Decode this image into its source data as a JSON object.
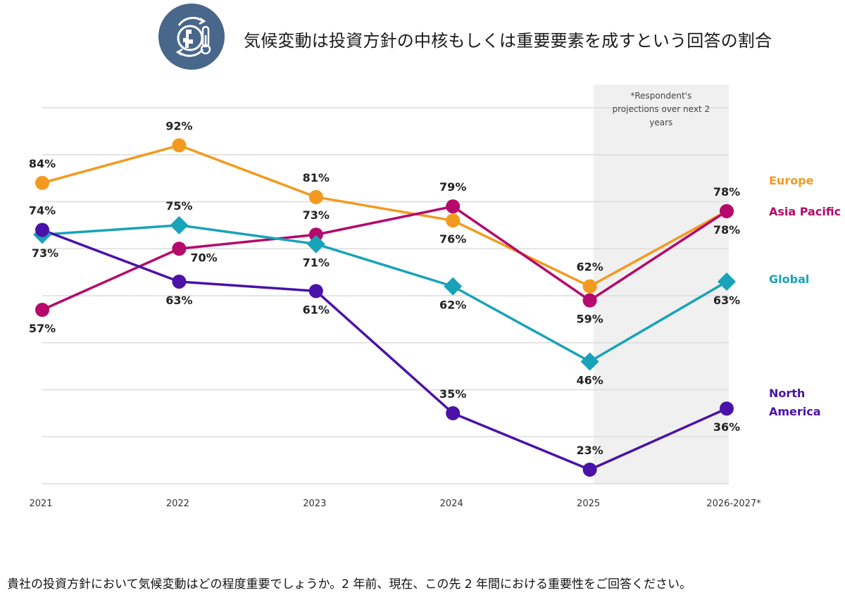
{
  "header": {
    "icon": "climate-globe-thermometer-icon",
    "icon_color": "#48678a",
    "title": "気候変動は投資方針の中核もしくは重要要素を成すという回答の割合"
  },
  "footer": {
    "question": "貴社の投資方針において気候変動はどの程度重要でしょうか。2 年前、現在、この先 2 年間における重要性をご回答ください。"
  },
  "chart_data": {
    "type": "line",
    "title": "気候変動は投資方針の中核もしくは重要要素を成すという回答の割合",
    "xlabel": "",
    "ylabel": "",
    "categories": [
      "2021",
      "2022",
      "2023",
      "2024",
      "2025",
      "2026-2027*"
    ],
    "ylim": [
      20,
      100
    ],
    "y_gridlines": [
      20,
      30,
      40,
      50,
      60,
      70,
      80,
      90,
      100
    ],
    "grid": true,
    "legend_placement": "right",
    "shaded_region": {
      "from_category": "2025",
      "to_category": "2026-2027*",
      "note": [
        "*Respondent's",
        "projections over next 2",
        "years"
      ]
    },
    "series": [
      {
        "name": "Europe",
        "color": "#f39a1e",
        "marker": "circle",
        "values": [
          84,
          92,
          81,
          76,
          62,
          78
        ],
        "label_pos": [
          "above",
          "above",
          "above",
          "below",
          "above",
          "above"
        ]
      },
      {
        "name": "Asia Pacific",
        "color": "#b5096b",
        "marker": "circle",
        "values": [
          57,
          70,
          73,
          79,
          59,
          78
        ],
        "label_pos": [
          "below",
          "right",
          "above",
          "above",
          "below",
          "below"
        ]
      },
      {
        "name": "Global",
        "color": "#18a3b8",
        "marker": "diamond",
        "values": [
          73,
          75,
          71,
          62,
          46,
          63
        ],
        "label_pos": [
          "below",
          "above",
          "below",
          "below",
          "below",
          "below"
        ]
      },
      {
        "name": "North America",
        "color": "#4a12a8",
        "marker": "circle",
        "values": [
          74,
          63,
          61,
          35,
          23,
          36
        ],
        "label_pos": [
          "above",
          "below",
          "below",
          "above",
          "above",
          "below"
        ]
      }
    ],
    "legend": [
      {
        "lines": [
          "Europe"
        ],
        "color": "#f39a1e"
      },
      {
        "lines": [
          "Asia Pacific"
        ],
        "color": "#b5096b"
      },
      {
        "lines": [
          "Global"
        ],
        "color": "#18a3b8"
      },
      {
        "lines": [
          "North",
          "America"
        ],
        "color": "#4a12a8"
      }
    ]
  }
}
